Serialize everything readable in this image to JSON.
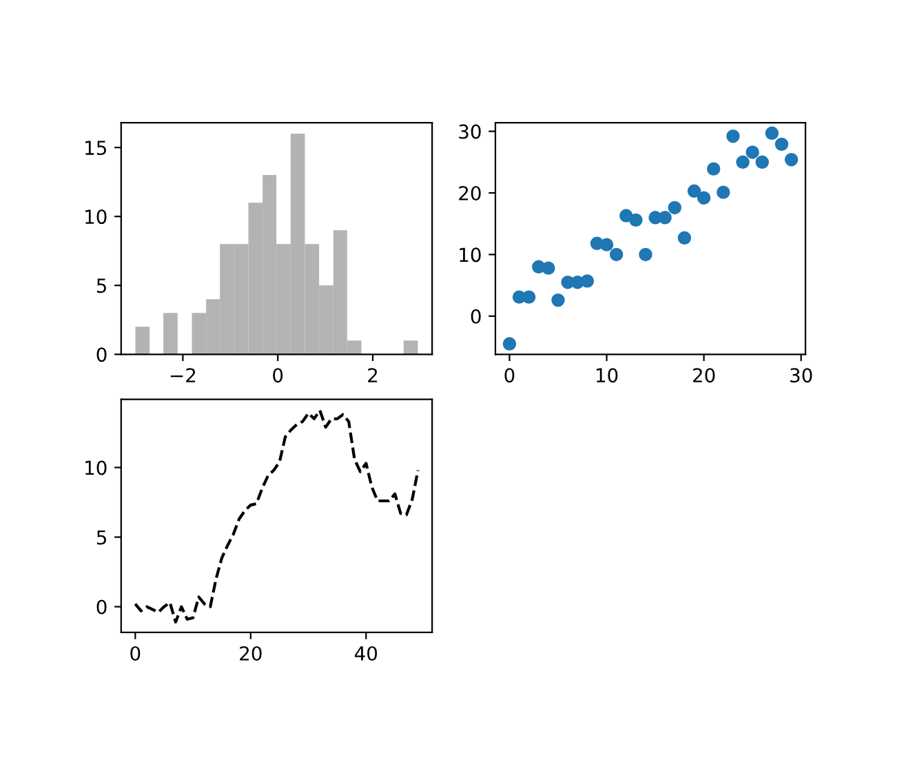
{
  "chart_data": [
    {
      "type": "histogram",
      "color": "#b3b3b3",
      "bins": [
        -3.0,
        -2.7,
        -2.41,
        -2.11,
        -1.81,
        -1.51,
        -1.22,
        -0.92,
        -0.62,
        -0.32,
        -0.03,
        0.27,
        0.57,
        0.87,
        1.17,
        1.46,
        1.76,
        2.65,
        2.95
      ],
      "values": [
        2,
        0,
        3,
        0,
        3,
        4,
        8,
        8,
        11,
        13,
        8,
        16,
        8,
        5,
        9,
        1,
        0,
        1
      ],
      "xlim": [
        -3.3,
        3.25
      ],
      "ylim": [
        0,
        16.8
      ],
      "xticks": [
        {
          "value": -2,
          "label": "−2"
        },
        0,
        2
      ],
      "yticks": [
        0,
        5,
        10,
        15
      ]
    },
    {
      "type": "scatter",
      "marker": "circle",
      "x": [
        0,
        1,
        2,
        3,
        4,
        5,
        6,
        7,
        8,
        9,
        10,
        11,
        12,
        13,
        14,
        15,
        16,
        17,
        18,
        19,
        20,
        21,
        22,
        23,
        24,
        25,
        26,
        27,
        28,
        29
      ],
      "series": [
        {
          "color": "#1f77b4",
          "values": [
            -4.5,
            3.1,
            3.1,
            8.0,
            7.8,
            2.6,
            5.5,
            5.5,
            5.7,
            11.8,
            11.6,
            10.0,
            16.3,
            15.6,
            10.0,
            16.0,
            16.0,
            17.6,
            12.7,
            20.3,
            19.2,
            23.9,
            20.1,
            29.2,
            25.0,
            26.6,
            25.0,
            29.7,
            27.9,
            25.4
          ]
        }
      ],
      "xlim": [
        -1.45,
        30.45
      ],
      "ylim": [
        -6.2,
        31.4
      ],
      "xticks": [
        0,
        10,
        20,
        30
      ],
      "yticks": [
        0,
        10,
        20,
        30
      ]
    },
    {
      "type": "line",
      "line_style": "dashed",
      "x": [
        0,
        1,
        2,
        3,
        4,
        5,
        6,
        7,
        8,
        9,
        10,
        11,
        12,
        13,
        14,
        15,
        16,
        17,
        18,
        19,
        20,
        21,
        22,
        23,
        24,
        25,
        26,
        27,
        28,
        29,
        30,
        31,
        32,
        33,
        34,
        35,
        36,
        37,
        38,
        39,
        40,
        41,
        42,
        43,
        44,
        45,
        46,
        47,
        48,
        49
      ],
      "series": [
        {
          "color": "#000000",
          "values": [
            0.2,
            -0.3,
            0.0,
            -0.2,
            -0.4,
            0.0,
            0.3,
            -1.1,
            0.0,
            -0.9,
            -0.8,
            0.7,
            0.2,
            0.0,
            2.0,
            3.5,
            4.4,
            5.2,
            6.3,
            6.9,
            7.3,
            7.4,
            8.5,
            9.4,
            9.8,
            10.4,
            12.2,
            12.7,
            13.1,
            13.3,
            13.9,
            13.5,
            14.1,
            12.9,
            13.5,
            13.5,
            13.8,
            13.3,
            10.6,
            9.7,
            10.3,
            8.6,
            7.6,
            7.6,
            7.6,
            8.1,
            6.7,
            6.6,
            7.7,
            9.8
          ]
        }
      ],
      "xlim": [
        -2.45,
        51.45
      ],
      "ylim": [
        -1.85,
        14.9
      ],
      "xticks": [
        0,
        20,
        40
      ],
      "yticks": [
        0,
        5,
        10
      ]
    }
  ]
}
